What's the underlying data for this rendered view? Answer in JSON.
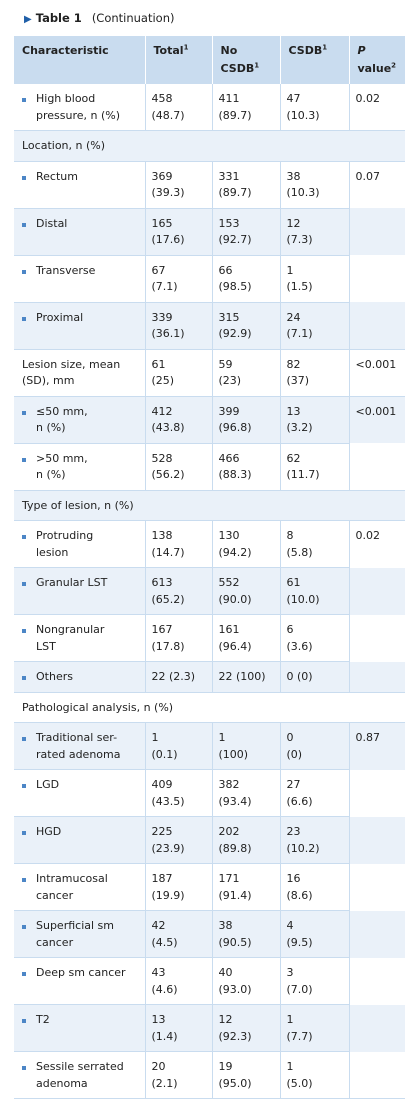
{
  "caption": {
    "label": "Table 1",
    "continuation": "(Continuation)"
  },
  "header": {
    "characteristic": "Characteristic",
    "total": "Total",
    "no_csdb_line1": "No",
    "no_csdb_line2": "CSDB",
    "csdb": "CSDB",
    "p_line1": "P",
    "p_line2": "value",
    "sup1": "1",
    "sup2": "2"
  },
  "rows": [
    {
      "label": [
        "High blood",
        "pressure, n (%)"
      ],
      "bullet": true,
      "total": [
        "458",
        "(48.7)"
      ],
      "no": [
        "411",
        "(89.7)"
      ],
      "csdb": [
        "47",
        "(10.3)"
      ],
      "p": [
        "0.02"
      ]
    },
    {
      "section": "Location, n (%)"
    },
    {
      "label": [
        "Rectum"
      ],
      "bullet": true,
      "total": [
        "369",
        "(39.3)"
      ],
      "no": [
        "331",
        "(89.7)"
      ],
      "csdb": [
        "38",
        "(10.3)"
      ],
      "p": [
        "0.07"
      ]
    },
    {
      "label": [
        "Distal"
      ],
      "bullet": true,
      "total": [
        "165",
        "(17.6)"
      ],
      "no": [
        "153",
        "(92.7)"
      ],
      "csdb": [
        "12",
        "(7.3)"
      ],
      "p": []
    },
    {
      "label": [
        "Transverse"
      ],
      "bullet": true,
      "total": [
        "67",
        "(7.1)"
      ],
      "no": [
        "66",
        "(98.5)"
      ],
      "csdb": [
        "1",
        "(1.5)"
      ],
      "p": []
    },
    {
      "label": [
        "Proximal"
      ],
      "bullet": true,
      "total": [
        "339",
        "(36.1)"
      ],
      "no": [
        "315",
        "(92.9)"
      ],
      "csdb": [
        "24",
        "(7.1)"
      ],
      "p": []
    },
    {
      "label": [
        "Lesion size, mean",
        "(SD), mm"
      ],
      "bullet": false,
      "total": [
        "61",
        "(25)"
      ],
      "no": [
        "59",
        "(23)"
      ],
      "csdb": [
        "82",
        "(37)"
      ],
      "p": [
        "<0.001"
      ]
    },
    {
      "label": [
        "≤50 mm,",
        "n (%)"
      ],
      "bullet": true,
      "total": [
        "412",
        "(43.8)"
      ],
      "no": [
        "399",
        "(96.8)"
      ],
      "csdb": [
        "13",
        "(3.2)"
      ],
      "p": [
        "<0.001"
      ]
    },
    {
      "label": [
        ">50 mm,",
        "n (%)"
      ],
      "bullet": true,
      "total": [
        "528",
        "(56.2)"
      ],
      "no": [
        "466",
        "(88.3)"
      ],
      "csdb": [
        "62",
        "(11.7)"
      ],
      "p": []
    },
    {
      "section": "Type of lesion, n (%)"
    },
    {
      "label": [
        "Protruding",
        "lesion"
      ],
      "bullet": true,
      "total": [
        "138",
        "(14.7)"
      ],
      "no": [
        "130",
        "(94.2)"
      ],
      "csdb": [
        "8",
        "(5.8)"
      ],
      "p": [
        "0.02"
      ]
    },
    {
      "label": [
        "Granular LST"
      ],
      "bullet": true,
      "total": [
        "613",
        "(65.2)"
      ],
      "no": [
        "552",
        "(90.0)"
      ],
      "csdb": [
        "61",
        "(10.0)"
      ],
      "p": []
    },
    {
      "label": [
        "Nongranular",
        "LST"
      ],
      "bullet": true,
      "total": [
        "167",
        "(17.8)"
      ],
      "no": [
        "161",
        "(96.4)"
      ],
      "csdb": [
        "6",
        "(3.6)"
      ],
      "p": []
    },
    {
      "label": [
        "Others"
      ],
      "bullet": true,
      "total": [
        "22 (2.3)"
      ],
      "no": [
        "22 (100)"
      ],
      "csdb": [
        "0 (0)"
      ],
      "p": []
    },
    {
      "section": "Pathological analysis, n (%)"
    },
    {
      "label": [
        "Traditional ser-",
        "rated adenoma"
      ],
      "bullet": true,
      "total": [
        "1",
        "(0.1)"
      ],
      "no": [
        "1",
        "(100)"
      ],
      "csdb": [
        "0",
        "(0)"
      ],
      "p": [
        "0.87"
      ]
    },
    {
      "label": [
        "LGD"
      ],
      "bullet": true,
      "total": [
        "409",
        "(43.5)"
      ],
      "no": [
        "382",
        "(93.4)"
      ],
      "csdb": [
        "27",
        "(6.6)"
      ],
      "p": []
    },
    {
      "label": [
        "HGD"
      ],
      "bullet": true,
      "total": [
        "225",
        "(23.9)"
      ],
      "no": [
        "202",
        "(89.8)"
      ],
      "csdb": [
        "23",
        "(10.2)"
      ],
      "p": []
    },
    {
      "label": [
        "Intramucosal",
        "cancer"
      ],
      "bullet": true,
      "total": [
        "187",
        "(19.9)"
      ],
      "no": [
        "171",
        "(91.4)"
      ],
      "csdb": [
        "16",
        "(8.6)"
      ],
      "p": []
    },
    {
      "label": [
        "Superficial sm",
        "cancer"
      ],
      "bullet": true,
      "total": [
        "42",
        "(4.5)"
      ],
      "no": [
        "38",
        "(90.5)"
      ],
      "csdb": [
        "4",
        "(9.5)"
      ],
      "p": []
    },
    {
      "label": [
        "Deep sm cancer"
      ],
      "bullet": true,
      "total": [
        "43",
        "(4.6)"
      ],
      "no": [
        "40",
        "(93.0)"
      ],
      "csdb": [
        "3",
        "(7.0)"
      ],
      "p": []
    },
    {
      "label": [
        "T2"
      ],
      "bullet": true,
      "total": [
        "13",
        "(1.4)"
      ],
      "no": [
        "12",
        "(92.3)"
      ],
      "csdb": [
        "1",
        "(7.7)"
      ],
      "p": []
    },
    {
      "label": [
        "Sessile serrated",
        "adenoma"
      ],
      "bullet": true,
      "total": [
        "20",
        "(2.1)"
      ],
      "no": [
        "19",
        "(95.0)"
      ],
      "csdb": [
        "1",
        "(5.0)"
      ],
      "p": []
    }
  ]
}
